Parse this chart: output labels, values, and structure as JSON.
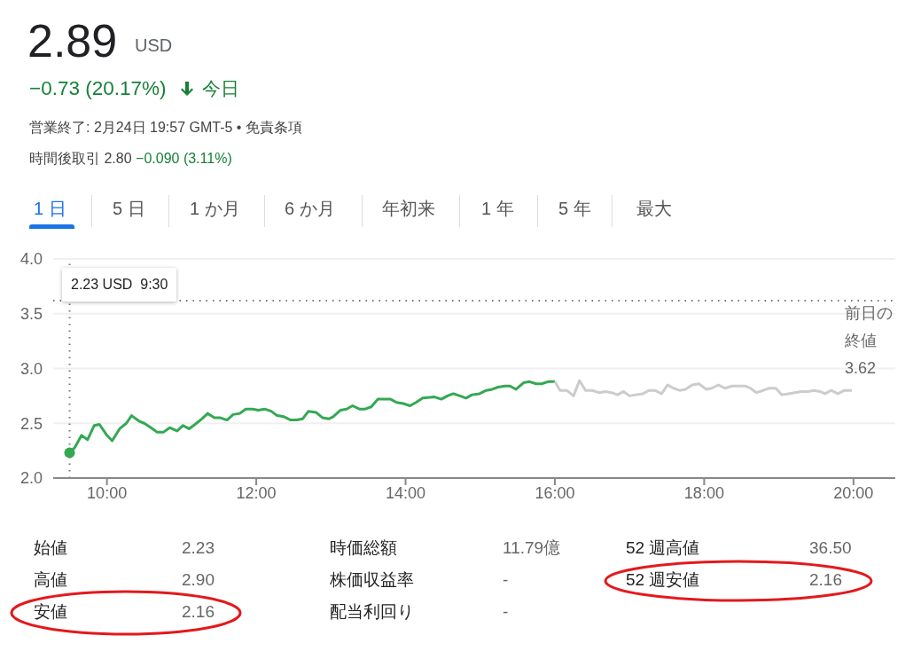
{
  "chart_data": {
    "type": "line",
    "title": "2.89",
    "annotations": [
      "USD",
      "−0.73 (20.17%)",
      "今日",
      "営業終了: 2月24日 19:57 GMT-5 • 免責条項",
      "時間後取引 2.80",
      "−0.090 (3.11%)",
      "1 日",
      "5 日",
      "1 か月",
      "6 か月",
      "年初来",
      "1 年",
      "5 年",
      "最大",
      "始値",
      "2.23",
      "高値",
      "2.90",
      "安値",
      "2.16",
      "時価総額",
      "11.79億",
      "株価収益率",
      "-",
      "配当利回り",
      "-",
      "52 週高値",
      "36.50",
      "52 週安値",
      "2.16",
      "2.23 USD  9:30"
    ],
    "series": [
      {
        "color": "#34a853",
        "x": [
          9.5,
          9.57,
          9.66,
          9.74,
          9.83,
          9.9,
          10.0,
          10.07,
          10.17,
          10.26,
          10.33,
          10.43,
          10.5,
          10.59,
          10.67,
          10.76,
          10.84,
          10.94,
          11.02,
          11.1,
          11.18,
          11.27,
          11.35,
          11.44,
          11.52,
          11.61,
          11.69,
          11.78,
          11.86,
          11.95,
          12.03,
          12.11,
          12.2,
          12.28,
          12.37,
          12.46,
          12.54,
          12.62,
          12.7,
          12.8,
          12.89,
          12.97,
          13.03,
          13.13,
          13.21,
          13.29,
          13.38,
          13.46,
          13.54,
          13.63,
          13.8,
          13.88,
          13.97,
          14.06,
          14.14,
          14.23,
          14.39,
          14.48,
          14.56,
          14.64,
          14.73,
          14.81,
          14.89,
          14.99,
          15.08,
          15.16,
          15.24,
          15.33,
          15.4,
          15.48,
          15.58,
          15.66,
          15.75,
          15.82,
          15.91,
          16.0
        ],
        "values": [
          2.23,
          2.28,
          2.39,
          2.35,
          2.48,
          2.49,
          2.39,
          2.34,
          2.45,
          2.5,
          2.57,
          2.52,
          2.5,
          2.46,
          2.42,
          2.42,
          2.46,
          2.43,
          2.48,
          2.45,
          2.49,
          2.54,
          2.59,
          2.55,
          2.55,
          2.53,
          2.58,
          2.59,
          2.63,
          2.63,
          2.62,
          2.63,
          2.61,
          2.57,
          2.56,
          2.53,
          2.53,
          2.54,
          2.61,
          2.6,
          2.55,
          2.54,
          2.56,
          2.62,
          2.63,
          2.66,
          2.63,
          2.63,
          2.65,
          2.72,
          2.72,
          2.69,
          2.68,
          2.66,
          2.69,
          2.73,
          2.74,
          2.72,
          2.75,
          2.77,
          2.75,
          2.73,
          2.76,
          2.77,
          2.8,
          2.81,
          2.83,
          2.84,
          2.84,
          2.81,
          2.87,
          2.88,
          2.86,
          2.86,
          2.88,
          2.88
        ]
      },
      {
        "color": "#cccccc",
        "x": [
          16.0,
          16.07,
          16.16,
          16.25,
          16.33,
          16.41,
          16.5,
          16.59,
          16.68,
          16.76,
          16.84,
          16.92,
          17.0,
          17.08,
          17.18,
          17.26,
          17.34,
          17.43,
          17.51,
          17.59,
          17.67,
          17.75,
          17.84,
          17.93,
          18.03,
          18.1,
          18.19,
          18.28,
          18.37,
          18.55,
          18.62,
          18.7,
          18.79,
          18.87,
          18.96,
          19.04,
          19.13,
          19.21,
          19.3,
          19.39,
          19.47,
          19.55,
          19.62,
          19.7,
          19.79,
          19.88,
          19.98
        ],
        "values": [
          2.88,
          2.8,
          2.8,
          2.75,
          2.89,
          2.8,
          2.8,
          2.78,
          2.79,
          2.78,
          2.76,
          2.79,
          2.75,
          2.76,
          2.77,
          2.8,
          2.8,
          2.77,
          2.85,
          2.82,
          2.8,
          2.81,
          2.85,
          2.86,
          2.81,
          2.82,
          2.85,
          2.82,
          2.84,
          2.84,
          2.82,
          2.78,
          2.8,
          2.82,
          2.82,
          2.76,
          2.77,
          2.78,
          2.79,
          2.79,
          2.8,
          2.79,
          2.77,
          2.8,
          2.77,
          2.8,
          2.8
        ]
      }
    ],
    "xlim": [
      9.28,
      20.56
    ],
    "xticks": [
      {
        "value": 10,
        "label": "10:00"
      },
      {
        "value": 12,
        "label": "12:00"
      },
      {
        "value": 14,
        "label": "14:00"
      },
      {
        "value": 16,
        "label": "16:00"
      },
      {
        "value": 18,
        "label": "18:00"
      },
      {
        "value": 20,
        "label": "20:00"
      }
    ],
    "ylim": [
      2,
      4
    ],
    "yticks": [
      {
        "value": 2,
        "label": "2.0"
      },
      {
        "value": 2.5,
        "label": "2.5"
      },
      {
        "value": 3,
        "label": "3.0"
      },
      {
        "value": 3.5,
        "label": "3.5"
      },
      {
        "value": 4,
        "label": "4.0"
      }
    ],
    "grid": "y",
    "ref_lines": [
      {
        "axis": "y",
        "value": 3.62,
        "label": "前日の終値 3.62",
        "line_style": "dotted"
      },
      {
        "axis": "x",
        "value": 9.5,
        "line_style": "dotted"
      }
    ]
  }
}
